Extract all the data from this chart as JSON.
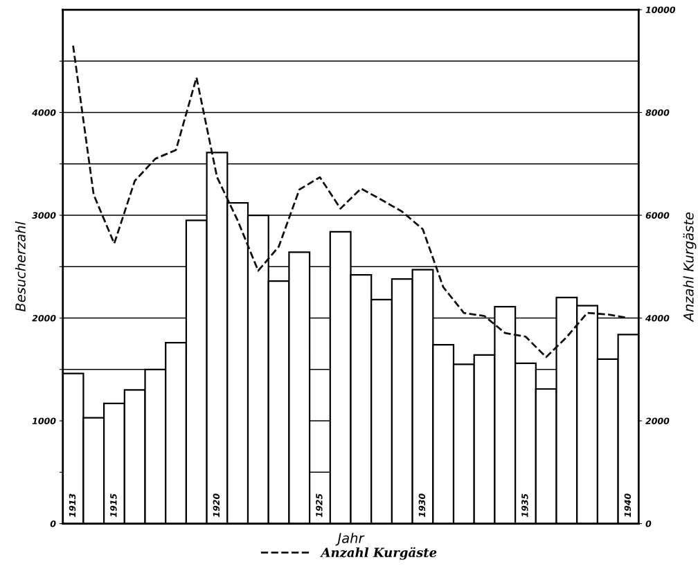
{
  "chart_data": {
    "type": "bar",
    "xlabel": "Jahr",
    "ylabel": "Besucherzahl",
    "y2label": "Anzahl Kurgäste",
    "categories": [
      "1913",
      null,
      "1915",
      null,
      null,
      null,
      null,
      "1920",
      null,
      null,
      null,
      null,
      "1925",
      null,
      null,
      null,
      null,
      "1930",
      null,
      null,
      null,
      null,
      "1935",
      null,
      null,
      null,
      null,
      "1940"
    ],
    "series": [
      {
        "color": "#ffffff",
        "values": [
          1460,
          1030,
          1170,
          1300,
          1500,
          1760,
          2950,
          3610,
          3120,
          3000,
          2360,
          2640,
          null,
          2840,
          2420,
          2180,
          2380,
          2470,
          1740,
          1550,
          1640,
          2110,
          1560,
          1310,
          2200,
          2120,
          1600,
          1840
        ]
      },
      {
        "type": "line",
        "name": "Anzahl Kurgäste",
        "axis": "y2",
        "color": "#111111",
        "line_style": "dashed",
        "values": [
          9300,
          6400,
          5450,
          6670,
          7100,
          7270,
          8680,
          6740,
          5900,
          4920,
          5390,
          6500,
          6740,
          6130,
          6520,
          6300,
          6070,
          5730,
          4600,
          4100,
          4040,
          3710,
          3640,
          3240,
          3630,
          4100,
          4070,
          4000
        ]
      }
    ],
    "ylim": [
      0,
      5000
    ],
    "yticks": [
      0,
      {
        "value": 500,
        "label": null
      },
      1000,
      {
        "value": 1500,
        "label": null
      },
      2000,
      {
        "value": 2500,
        "label": null
      },
      3000,
      {
        "value": 3500,
        "label": null
      },
      4000,
      {
        "value": 4500,
        "label": null
      }
    ],
    "y2lim": [
      0,
      10000
    ],
    "y2ticks": [
      0,
      2000,
      4000,
      6000,
      8000,
      10000
    ],
    "grid": "y",
    "legend": "bottom"
  }
}
